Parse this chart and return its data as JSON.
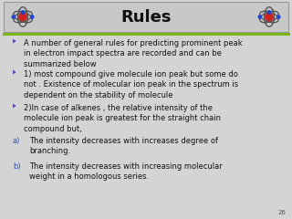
{
  "title": "Rules",
  "title_fontsize": 13,
  "title_color": "#111111",
  "title_bold": true,
  "background_color": "#d4d4d4",
  "header_bg": "#c8c8c8",
  "header_border_color": "#999999",
  "green_line_color": "#7cb518",
  "page_number": "26",
  "bullet_color": "#6644aa",
  "ab_color": "#3355bb",
  "text_color": "#111111",
  "bullets": [
    {
      "type": "arrow",
      "text": "A number of general rules for predicting prominent peak\nin electron impact spectra are recorded and can be\nsummarized below"
    },
    {
      "type": "arrow",
      "text": "1) most compound give molecule ion peak but some do\nnot . Existence of molecular ion peak in the spectrum is\ndependent on the stability of molecule"
    },
    {
      "type": "arrow",
      "text": "2)In case of alkenes , the relative intensity of the\nmolecule ion peak is greatest for the straight chain\ncompound but,"
    },
    {
      "type": "a",
      "text": "The intensity decreases with increases degree of\nbranching."
    },
    {
      "type": "b",
      "text": "The intensity decreases with increasing molecular\nweight in a homologous series."
    }
  ]
}
